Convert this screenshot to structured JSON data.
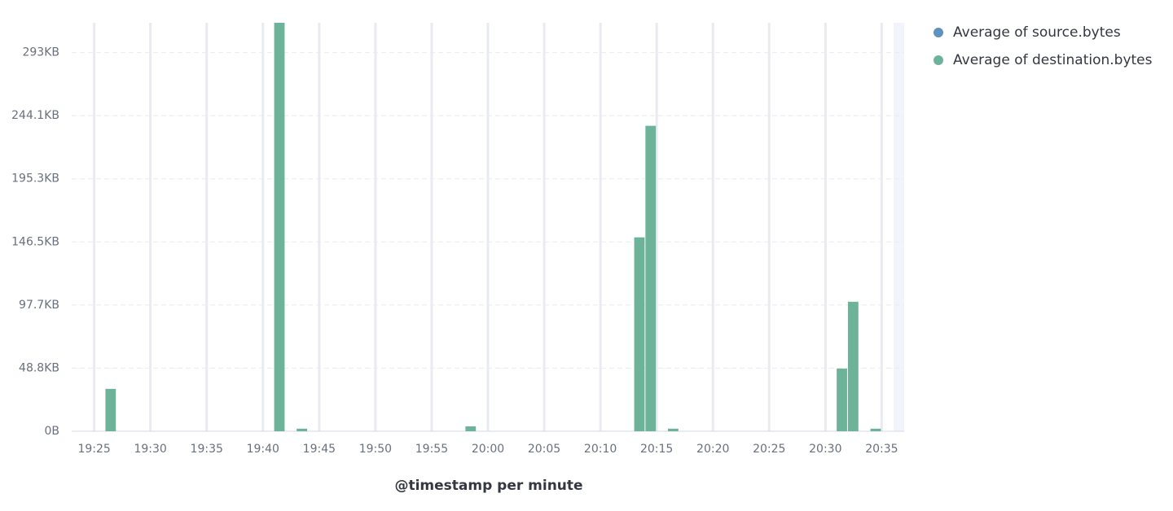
{
  "chart_data": {
    "type": "bar",
    "x_title": "@timestamp per minute",
    "x": [
      "19:26",
      "19:41",
      "19:43",
      "19:58",
      "20:13",
      "20:14",
      "20:16",
      "20:31",
      "20:32",
      "20:34"
    ],
    "series": [
      {
        "name": "Average of source.bytes",
        "color": "#6092c0",
        "values": [
          null,
          null,
          null,
          null,
          null,
          null,
          null,
          null,
          null,
          null
        ]
      },
      {
        "name": "Average of destination.bytes",
        "color": "#6db39a",
        "values": [
          32.8,
          320,
          2,
          3.8,
          150,
          236.3,
          2,
          48.5,
          100.2,
          2
        ]
      }
    ],
    "xlim": [
      "19:23",
      "20:37"
    ],
    "xticks": [
      "19:25",
      "19:30",
      "19:35",
      "19:40",
      "19:45",
      "19:50",
      "19:55",
      "20:00",
      "20:05",
      "20:10",
      "20:15",
      "20:20",
      "20:25",
      "20:30",
      "20:35"
    ],
    "ylim": [
      0,
      316
    ],
    "yticks": [
      {
        "value": 0,
        "label": "0B"
      },
      {
        "value": 48.83,
        "label": "48.8KB"
      },
      {
        "value": 97.66,
        "label": "97.7KB"
      },
      {
        "value": 146.48,
        "label": "146.5KB"
      },
      {
        "value": 195.31,
        "label": "195.3KB"
      },
      {
        "value": 244.14,
        "label": "244.1KB"
      },
      {
        "value": 292.97,
        "label": "293KB"
      }
    ],
    "grid": true,
    "legend": "right"
  }
}
